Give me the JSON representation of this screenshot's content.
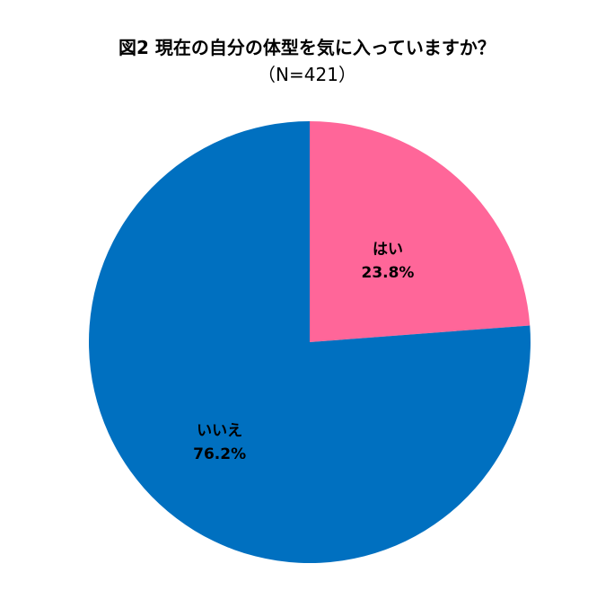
{
  "chart_data": {
    "type": "pie",
    "title": "図2 現在の自分の体型を気に入っていますか？",
    "subtitle": "（N=421）",
    "categories": [
      "はい",
      "いいえ"
    ],
    "values": [
      23.8,
      76.2
    ],
    "value_labels": [
      "23.8%",
      "76.2%"
    ],
    "colors": [
      "#ff6699",
      "#0070c0"
    ],
    "start": "12 o'clock, clockwise",
    "legend": "none"
  }
}
